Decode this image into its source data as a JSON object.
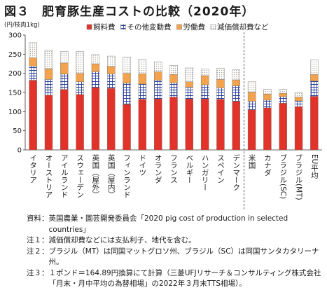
{
  "title": {
    "number": "図３",
    "text": "肥育豚生産コストの比較（2020年）"
  },
  "chart_data": {
    "type": "bar",
    "stacked": true,
    "ylabel": "(円/枝肉1kg)",
    "ylim": [
      0,
      300
    ],
    "yticks": [
      0,
      50,
      100,
      150,
      200,
      250,
      300
    ],
    "grid": false,
    "legend_position": "top",
    "categories": [
      "イタリア",
      "オーストリア",
      "アイルランド",
      "スウェーデン",
      "英国（屋外）",
      "英国（屋内）",
      "フィンランド",
      "ドイツ",
      "オランダ",
      "フランス",
      "ベルギー",
      "ハンガリー",
      "スペイン",
      "デンマーク",
      "米国",
      "カナダ",
      "ブラジル(SC)",
      "ブラジル(MT)",
      "EU平均"
    ],
    "separator_after_index": 13,
    "series": [
      {
        "name": "飼料費",
        "color": "#e2332a",
        "pattern": "solid",
        "values": [
          182,
          143,
          158,
          145,
          163,
          161,
          119,
          132,
          133,
          138,
          133,
          133,
          132,
          127,
          105,
          110,
          122,
          113,
          140
        ]
      },
      {
        "name": "その他変動費",
        "color": "#2a3f9a",
        "pattern": "grid",
        "values": [
          37,
          41,
          40,
          33,
          41,
          37,
          55,
          40,
          49,
          37,
          31,
          37,
          30,
          40,
          22,
          20,
          17,
          15,
          40
        ]
      },
      {
        "name": "労働費",
        "color": "#f3a34d",
        "pattern": "solid",
        "values": [
          21,
          28,
          29,
          22,
          21,
          20,
          26,
          27,
          22,
          22,
          14,
          24,
          22,
          16,
          24,
          16,
          9,
          10,
          17
        ]
      },
      {
        "name": "減価償却費など",
        "color": "#c7c2ba",
        "pattern": "dots",
        "values": [
          40,
          48,
          30,
          57,
          24,
          27,
          42,
          37,
          26,
          24,
          36,
          17,
          29,
          26,
          27,
          12,
          10,
          11,
          38
        ]
      }
    ]
  },
  "notes": [
    {
      "label": "資料：",
      "text": "英国農業・園芸開発委員会「2020 pig cost of production in selected countries」"
    },
    {
      "label": "注１：",
      "text": "減価償却費などには支払利子、地代を含む。"
    },
    {
      "label": "注２：",
      "text": "ブラジル（MT）は同国マットグロソ州、ブラジル（SC）は同国サンタカタリーナ州。"
    },
    {
      "label": "注３：",
      "text": "１ポンド＝164.89円換算にて計算（三菱UFJリサーチ＆コンサルティング株式会社「月末・月中平均の為替相場」の2022年３月末TTS相場）。"
    }
  ]
}
